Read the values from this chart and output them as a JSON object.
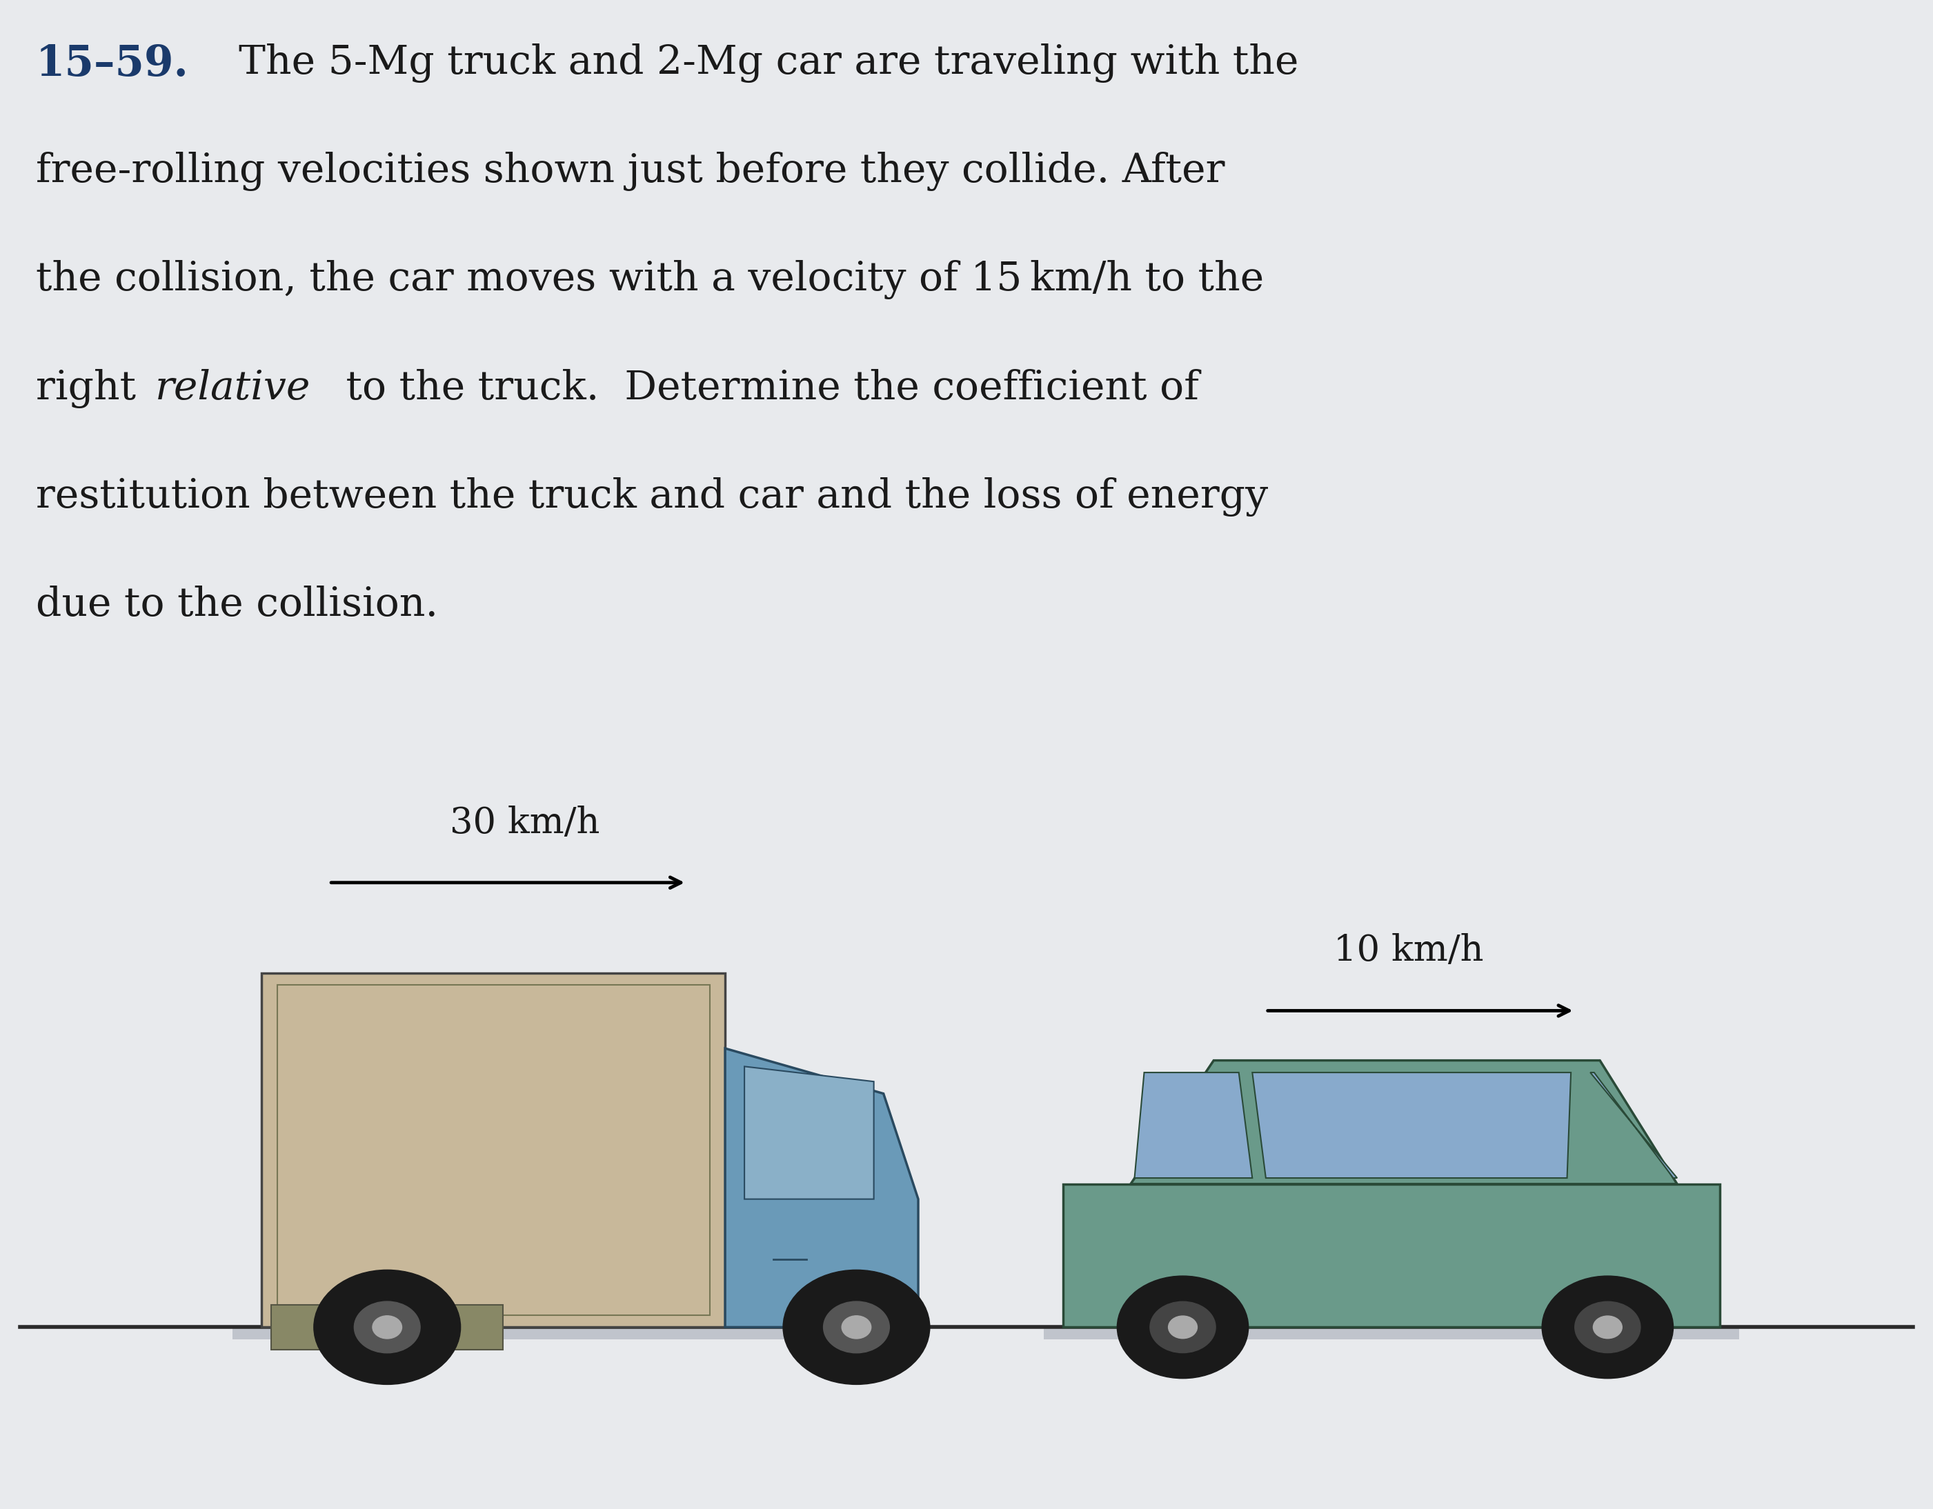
{
  "background_color": "#e8eaed",
  "fig_width": 28.02,
  "fig_height": 21.88,
  "title_number_color": "#1a3a6b",
  "text_color": "#1a1a1a",
  "truck_body_color": "#c8b89a",
  "truck_cab_color": "#6a9ab8",
  "truck_window_color": "#8ab0c8",
  "wheel_color": "#1a1a1a",
  "wheel_hub_color": "#aaaaaa",
  "car_body_color": "#6a9a8a",
  "car_window_color": "#88aacc",
  "ground_color": "#2a2a2a",
  "shadow_color": "#c0c4cc",
  "line1": "15–59.  The 5-Mg truck and 2-Mg car are traveling with the",
  "line2": "free-rolling velocities shown just before they collide. After",
  "line3": "the collision, the car moves with a velocity of 15 km/h to the",
  "line4a": "right ",
  "line4b": "relative",
  "line4c": " to the truck.  Determine the coefficient of",
  "line5": "restitution between the truck and car and the loss of energy",
  "line6": "due to the collision.",
  "truck_speed_label": "30 km/h",
  "car_speed_label": "10 km/h"
}
